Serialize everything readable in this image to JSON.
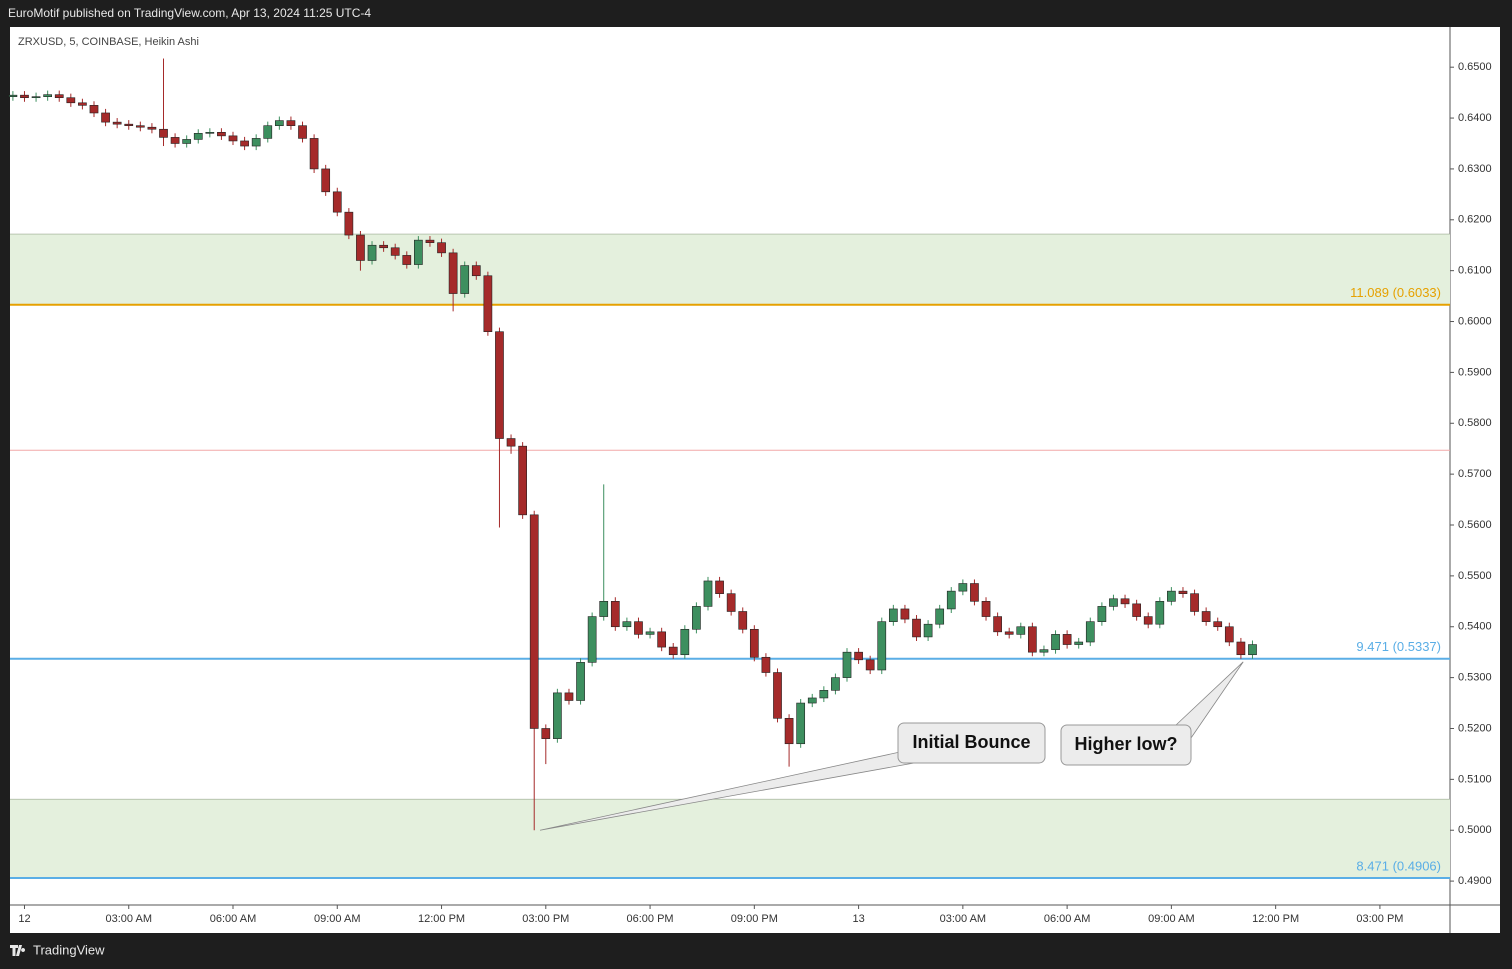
{
  "header": "EuroMotif published on TradingView.com, Apr 13, 2024 11:25 UTC-4",
  "footer_brand": "TradingView",
  "chart_data": {
    "type": "candlestick",
    "title": "ZRXUSD, 5, COINBASE, Heikin Ashi",
    "x": [
      -20,
      0,
      20,
      40,
      60,
      80,
      100,
      120,
      140,
      160,
      180,
      200,
      220,
      240,
      260,
      280,
      300,
      320,
      340,
      360,
      380,
      400,
      420,
      440,
      460,
      480,
      500,
      520,
      540,
      560,
      580,
      600,
      620,
      640,
      660,
      680,
      700,
      720,
      740,
      760,
      780,
      800,
      820,
      840,
      860,
      880,
      900,
      920,
      940,
      960,
      980,
      1000,
      1020,
      1040,
      1060,
      1080,
      1100,
      1120,
      1140,
      1160,
      1180,
      1200,
      1220,
      1240,
      1260,
      1280,
      1300,
      1320,
      1340,
      1360,
      1380,
      1400,
      1420,
      1440,
      1460,
      1480,
      1500,
      1520,
      1540,
      1560,
      1580,
      1600,
      1620,
      1640,
      1660,
      1680,
      1700,
      1720,
      1740,
      1760,
      1780,
      1800,
      1820,
      1840,
      1860,
      1880,
      1900,
      1920,
      1940,
      1960,
      1980,
      2000,
      2020,
      2040,
      2060,
      2080,
      2100,
      2120
    ],
    "open": [
      0.6442,
      0.6445,
      0.644,
      0.6442,
      0.6446,
      0.644,
      0.643,
      0.6425,
      0.641,
      0.6392,
      0.6388,
      0.6385,
      0.6382,
      0.6378,
      0.6362,
      0.635,
      0.6358,
      0.637,
      0.6372,
      0.6365,
      0.6355,
      0.6345,
      0.636,
      0.6385,
      0.6395,
      0.6385,
      0.636,
      0.63,
      0.6255,
      0.6215,
      0.617,
      0.612,
      0.615,
      0.6145,
      0.613,
      0.6112,
      0.616,
      0.6155,
      0.6135,
      0.6055,
      0.611,
      0.609,
      0.598,
      0.577,
      0.5755,
      0.562,
      0.52,
      0.518,
      0.527,
      0.5255,
      0.533,
      0.542,
      0.545,
      0.54,
      0.541,
      0.5385,
      0.539,
      0.536,
      0.5345,
      0.5395,
      0.544,
      0.549,
      0.5465,
      0.543,
      0.5395,
      0.534,
      0.531,
      0.522,
      0.517,
      0.525,
      0.526,
      0.5275,
      0.53,
      0.535,
      0.5335,
      0.5315,
      0.541,
      0.5435,
      0.5415,
      0.538,
      0.5405,
      0.5435,
      0.547,
      0.5485,
      0.545,
      0.542,
      0.539,
      0.5385,
      0.54,
      0.535,
      0.5355,
      0.5385,
      0.5365,
      0.537,
      0.541,
      0.544,
      0.5455,
      0.5445,
      0.542,
      0.5405,
      0.545,
      0.547,
      0.5465,
      0.543,
      0.541,
      0.54,
      0.537,
      0.5345
    ],
    "high": [
      0.6453,
      0.6453,
      0.645,
      0.6454,
      0.6454,
      0.6448,
      0.6438,
      0.6433,
      0.6418,
      0.64,
      0.6396,
      0.6393,
      0.639,
      0.6517,
      0.637,
      0.6366,
      0.6378,
      0.638,
      0.638,
      0.6373,
      0.6363,
      0.6368,
      0.6393,
      0.6403,
      0.6403,
      0.6393,
      0.6368,
      0.6308,
      0.6263,
      0.6223,
      0.6178,
      0.6158,
      0.6158,
      0.6153,
      0.6138,
      0.6168,
      0.6168,
      0.6163,
      0.6143,
      0.6118,
      0.6118,
      0.6098,
      0.5988,
      0.5778,
      0.5763,
      0.5628,
      0.5208,
      0.5278,
      0.5278,
      0.5338,
      0.5428,
      0.568,
      0.5458,
      0.5418,
      0.5418,
      0.5398,
      0.5398,
      0.5368,
      0.5403,
      0.5448,
      0.5498,
      0.5498,
      0.5473,
      0.5438,
      0.5403,
      0.5348,
      0.5318,
      0.5228,
      0.5258,
      0.5268,
      0.5283,
      0.5308,
      0.5358,
      0.5358,
      0.5343,
      0.5418,
      0.5443,
      0.5443,
      0.5423,
      0.5413,
      0.5443,
      0.5478,
      0.5493,
      0.5493,
      0.5458,
      0.5428,
      0.5398,
      0.5408,
      0.5408,
      0.5363,
      0.5393,
      0.5393,
      0.5378,
      0.5418,
      0.5448,
      0.5463,
      0.5463,
      0.5453,
      0.5428,
      0.5458,
      0.5478,
      0.5478,
      0.5473,
      0.5438,
      0.5418,
      0.5408,
      0.5378,
      0.5373
    ],
    "low": [
      0.6434,
      0.6432,
      0.6432,
      0.6434,
      0.6432,
      0.6422,
      0.6417,
      0.6402,
      0.6384,
      0.638,
      0.6377,
      0.6374,
      0.637,
      0.6345,
      0.6342,
      0.6342,
      0.635,
      0.6362,
      0.6357,
      0.6347,
      0.6337,
      0.6337,
      0.6352,
      0.6377,
      0.6377,
      0.6352,
      0.6292,
      0.6247,
      0.6207,
      0.6162,
      0.61,
      0.6112,
      0.6137,
      0.6122,
      0.6104,
      0.6104,
      0.6147,
      0.6127,
      0.602,
      0.6047,
      0.6082,
      0.5972,
      0.5595,
      0.574,
      0.5612,
      0.5,
      0.513,
      0.5172,
      0.5247,
      0.5247,
      0.5322,
      0.5412,
      0.5392,
      0.5392,
      0.5377,
      0.5377,
      0.5352,
      0.5337,
      0.5337,
      0.5387,
      0.5432,
      0.5457,
      0.5422,
      0.5387,
      0.5332,
      0.5302,
      0.5212,
      0.5125,
      0.5162,
      0.5242,
      0.5252,
      0.5267,
      0.5292,
      0.5327,
      0.5307,
      0.5307,
      0.5402,
      0.5407,
      0.5372,
      0.5372,
      0.5397,
      0.5427,
      0.5462,
      0.5442,
      0.5412,
      0.5382,
      0.5377,
      0.5377,
      0.5342,
      0.5342,
      0.5347,
      0.5357,
      0.5357,
      0.5362,
      0.5402,
      0.5432,
      0.5437,
      0.5412,
      0.5397,
      0.5397,
      0.5442,
      0.5457,
      0.5422,
      0.5402,
      0.5392,
      0.5362,
      0.5337,
      0.5337
    ],
    "close": [
      0.6445,
      0.644,
      0.6442,
      0.6446,
      0.644,
      0.643,
      0.6425,
      0.641,
      0.6392,
      0.6388,
      0.6385,
      0.6382,
      0.6378,
      0.6362,
      0.635,
      0.6358,
      0.637,
      0.6372,
      0.6365,
      0.6355,
      0.6345,
      0.636,
      0.6385,
      0.6395,
      0.6385,
      0.636,
      0.63,
      0.6255,
      0.6215,
      0.617,
      0.612,
      0.615,
      0.6145,
      0.613,
      0.6112,
      0.616,
      0.6155,
      0.6135,
      0.6055,
      0.611,
      0.609,
      0.598,
      0.577,
      0.5755,
      0.562,
      0.52,
      0.518,
      0.527,
      0.5255,
      0.533,
      0.542,
      0.545,
      0.54,
      0.541,
      0.5385,
      0.539,
      0.536,
      0.5345,
      0.5395,
      0.544,
      0.549,
      0.5465,
      0.543,
      0.5395,
      0.534,
      0.531,
      0.522,
      0.517,
      0.525,
      0.526,
      0.5275,
      0.53,
      0.535,
      0.5335,
      0.5315,
      0.541,
      0.5435,
      0.5415,
      0.538,
      0.5405,
      0.5435,
      0.547,
      0.5485,
      0.545,
      0.542,
      0.539,
      0.5385,
      0.54,
      0.535,
      0.5355,
      0.5385,
      0.5365,
      0.537,
      0.541,
      0.544,
      0.5455,
      0.5445,
      0.542,
      0.5405,
      0.545,
      0.547,
      0.5465,
      0.543,
      0.541,
      0.54,
      0.537,
      0.5345,
      0.5365
    ],
    "up_color": "#3d8f5f",
    "down_color": "#a52a2a",
    "xlim": [
      -25,
      2461
    ],
    "xticks": [
      {
        "value": 0,
        "label": "12"
      },
      {
        "value": 180,
        "label": "03:00 AM"
      },
      {
        "value": 360,
        "label": "06:00 AM"
      },
      {
        "value": 540,
        "label": "09:00 AM"
      },
      {
        "value": 720,
        "label": "12:00 PM"
      },
      {
        "value": 900,
        "label": "03:00 PM"
      },
      {
        "value": 1080,
        "label": "06:00 PM"
      },
      {
        "value": 1260,
        "label": "09:00 PM"
      },
      {
        "value": 1440,
        "label": "13"
      },
      {
        "value": 1620,
        "label": "03:00 AM"
      },
      {
        "value": 1800,
        "label": "06:00 AM"
      },
      {
        "value": 1980,
        "label": "09:00 AM"
      },
      {
        "value": 2160,
        "label": "12:00 PM"
      },
      {
        "value": 2340,
        "label": "03:00 PM"
      }
    ],
    "ylim": [
      0.4853,
      0.6579
    ],
    "yticks": [
      {
        "value": 0.65,
        "label": "0.6500"
      },
      {
        "value": 0.64,
        "label": "0.6400"
      },
      {
        "value": 0.63,
        "label": "0.6300"
      },
      {
        "value": 0.62,
        "label": "0.6200"
      },
      {
        "value": 0.61,
        "label": "0.6100"
      },
      {
        "value": 0.6,
        "label": "0.6000"
      },
      {
        "value": 0.59,
        "label": "0.5900"
      },
      {
        "value": 0.58,
        "label": "0.5800"
      },
      {
        "value": 0.57,
        "label": "0.5700"
      },
      {
        "value": 0.56,
        "label": "0.5600"
      },
      {
        "value": 0.55,
        "label": "0.5500"
      },
      {
        "value": 0.54,
        "label": "0.5400"
      },
      {
        "value": 0.53,
        "label": "0.5300"
      },
      {
        "value": 0.52,
        "label": "0.5200"
      },
      {
        "value": 0.51,
        "label": "0.5100"
      },
      {
        "value": 0.5,
        "label": "0.5000"
      },
      {
        "value": 0.49,
        "label": "0.4900"
      }
    ],
    "grid": false,
    "zones": [
      {
        "from": 0.6033,
        "to": 0.6172,
        "color": "#e4f0dd"
      },
      {
        "from": 0.4906,
        "to": 0.5061,
        "color": "#e4f0dd"
      }
    ],
    "levels": [
      {
        "value": 0.6033,
        "label": "11.089 (0.6033)",
        "color": "#e6a100"
      },
      {
        "value": 0.5747,
        "color": "#f2a8a8"
      },
      {
        "value": 0.5337,
        "label": "9.471 (0.5337)",
        "color": "#5aaee6"
      },
      {
        "value": 0.4906,
        "label": "8.471 (0.4906)",
        "color": "#5aaee6"
      }
    ],
    "annotations": [
      {
        "text": "Initial Bounce",
        "x": 890,
        "y": 0.5
      },
      {
        "text": "Higher low?",
        "x": 2104,
        "y": 0.5331
      }
    ]
  }
}
